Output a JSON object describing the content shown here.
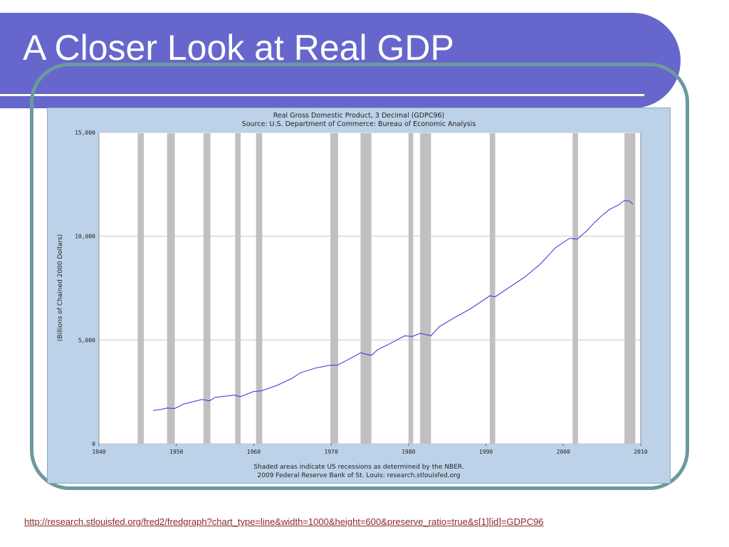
{
  "slide": {
    "title": "A Closer Look at Real GDP",
    "source_url": "http://research.stlouisfed.org/fred2/fredgraph?chart_type=line&width=1000&height=600&preserve_ratio=true&s[1][id]=GDPC96"
  },
  "colors": {
    "title_bar": "#6666cc",
    "frame": "#6b9a9c",
    "chart_background": "#bcd2e8",
    "plot_background": "#ffffff",
    "recession_band": "#c0c0c0",
    "series_line": "#3030e0",
    "link": "#8b2a2a"
  },
  "chart_data": {
    "type": "line",
    "title": "Real Gross Domestic Product, 3 Decimal (GDPC96)",
    "subtitle": "Source: U.S. Department of Commerce: Bureau of Economic Analysis",
    "ylabel": "(Billions of Chained 2000 Dollars)",
    "xlabel": "",
    "xlim": [
      1940,
      2010
    ],
    "ylim": [
      0,
      15000
    ],
    "x_ticks": [
      "1940",
      "1950",
      "1960",
      "1970",
      "1980",
      "1990",
      "2000",
      "2010"
    ],
    "y_ticks": [
      "0",
      "5,000",
      "10,000",
      "15,000"
    ],
    "grid": true,
    "footnote_1": "Shaded areas indicate US recessions as determined by the NBER.",
    "footnote_2": "2009 Federal Reserve Bank of St. Louis: research.stlouisfed.org",
    "recessions": [
      [
        1945.0,
        1945.8
      ],
      [
        1948.8,
        1949.8
      ],
      [
        1953.5,
        1954.4
      ],
      [
        1957.6,
        1958.3
      ],
      [
        1960.3,
        1961.1
      ],
      [
        1969.9,
        1970.9
      ],
      [
        1973.8,
        1975.2
      ],
      [
        1980.0,
        1980.6
      ],
      [
        1981.5,
        1982.9
      ],
      [
        1990.5,
        1991.2
      ],
      [
        2001.2,
        2001.9
      ],
      [
        2007.9,
        2009.3
      ]
    ],
    "series": [
      {
        "x": [
          1947,
          1948,
          1948.8,
          1949.8,
          1951,
          1953.3,
          1954.3,
          1955,
          1957.5,
          1958.3,
          1960,
          1961,
          1963,
          1965,
          1966,
          1968,
          1969.8,
          1970.8,
          1972,
          1973.8,
          1975.2,
          1976,
          1978,
          1979.5,
          1980.5,
          1981.5,
          1982.9,
          1984,
          1986,
          1988,
          1990.5,
          1991.2,
          1993,
          1995,
          1997,
          1999,
          2000.8,
          2001.8,
          2003,
          2004,
          2005,
          2006,
          2007,
          2007.9,
          2008.5,
          2009
        ],
        "y": [
          1600,
          1650,
          1720,
          1700,
          1920,
          2130,
          2070,
          2230,
          2340,
          2270,
          2520,
          2550,
          2810,
          3160,
          3420,
          3650,
          3780,
          3780,
          4020,
          4380,
          4260,
          4530,
          4900,
          5200,
          5170,
          5320,
          5200,
          5650,
          6090,
          6500,
          7130,
          7080,
          7530,
          8030,
          8650,
          9450,
          9900,
          9860,
          10250,
          10650,
          11000,
          11300,
          11480,
          11720,
          11700,
          11550
        ]
      }
    ]
  }
}
